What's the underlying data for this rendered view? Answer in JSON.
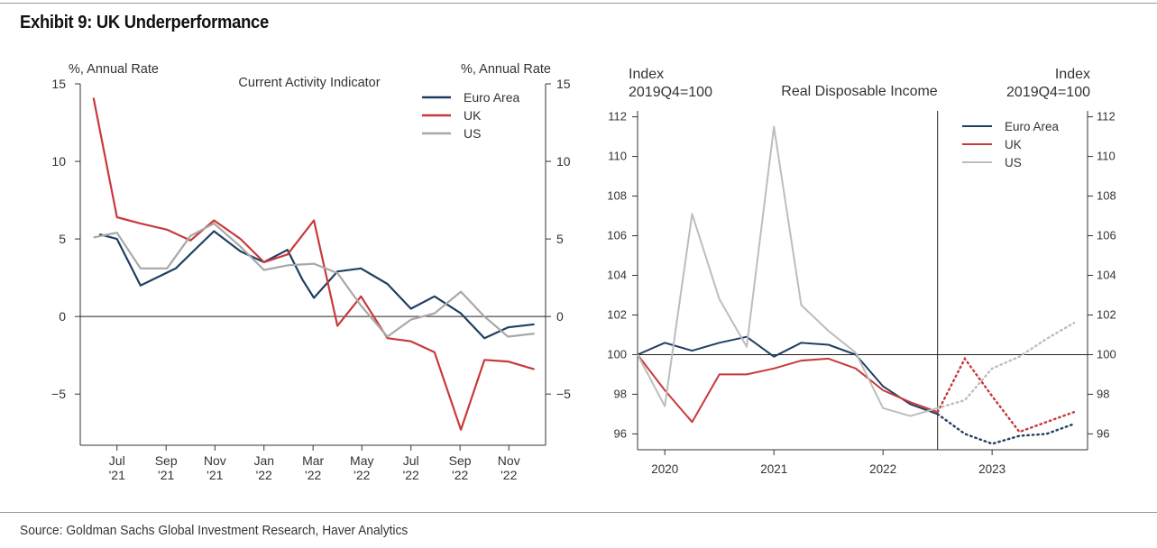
{
  "exhibit": {
    "title": "Exhibit 9: UK Underperformance",
    "source": "Source: Goldman Sachs Global Investment Research, Haver Analytics"
  },
  "colors": {
    "euro_area": "#1f3f62",
    "uk": "#c8393a",
    "us_left": "#a8a8a8",
    "us_right": "#bdbdbd",
    "axis": "#333333"
  },
  "chart_data": [
    {
      "id": "current-activity",
      "type": "line",
      "title": "Current Activity Indicator",
      "ylabel_left": "%, Annual Rate",
      "ylabel_right": "%, Annual Rate",
      "ylim": [
        -8.3,
        15
      ],
      "xlim": [
        2021.375,
        2022.958
      ],
      "yticks": [
        15,
        10,
        5,
        0,
        -5
      ],
      "ytick_labels": [
        "15",
        "10",
        "5",
        "0",
        "−5"
      ],
      "xticks": [
        {
          "x": 2021.5,
          "line1": "Jul",
          "line2": "'21"
        },
        {
          "x": 2021.667,
          "line1": "Sep",
          "line2": "'21"
        },
        {
          "x": 2021.833,
          "line1": "Nov",
          "line2": "'21"
        },
        {
          "x": 2022.0,
          "line1": "Jan",
          "line2": "'22"
        },
        {
          "x": 2022.167,
          "line1": "Mar",
          "line2": "'22"
        },
        {
          "x": 2022.333,
          "line1": "May",
          "line2": "'22"
        },
        {
          "x": 2022.5,
          "line1": "Jul",
          "line2": "'22"
        },
        {
          "x": 2022.667,
          "line1": "Sep",
          "line2": "'22"
        },
        {
          "x": 2022.833,
          "line1": "Nov",
          "line2": "'22"
        }
      ],
      "legend": [
        "Euro Area",
        "UK",
        "US"
      ],
      "series": [
        {
          "name": "Euro Area",
          "key": "euro_area",
          "x": [
            2021.44,
            2021.5,
            2021.58,
            2021.7,
            2021.77,
            2021.83,
            2021.92,
            2022.0,
            2022.08,
            2022.13,
            2022.17,
            2022.25,
            2022.33,
            2022.42,
            2022.5,
            2022.58,
            2022.67,
            2022.75,
            2022.83,
            2022.92
          ],
          "y": [
            5.3,
            5.0,
            2.0,
            3.1,
            4.4,
            5.5,
            4.2,
            3.5,
            4.3,
            2.4,
            1.2,
            2.9,
            3.1,
            2.1,
            0.5,
            1.3,
            0.2,
            -1.4,
            -0.7,
            -0.5
          ]
        },
        {
          "name": "UK",
          "key": "uk",
          "x": [
            2021.42,
            2021.5,
            2021.58,
            2021.67,
            2021.75,
            2021.83,
            2021.92,
            2022.0,
            2022.08,
            2022.17,
            2022.25,
            2022.33,
            2022.42,
            2022.5,
            2022.58,
            2022.67,
            2022.75,
            2022.83,
            2022.92
          ],
          "y": [
            14.1,
            6.4,
            6.0,
            5.6,
            4.9,
            6.2,
            5.0,
            3.5,
            4.0,
            6.2,
            -0.6,
            1.3,
            -1.4,
            -1.6,
            -2.3,
            -7.3,
            -2.8,
            -2.9,
            -3.4
          ]
        },
        {
          "name": "US",
          "key": "us_left",
          "x": [
            2021.42,
            2021.5,
            2021.58,
            2021.67,
            2021.75,
            2021.83,
            2021.92,
            2022.0,
            2022.08,
            2022.17,
            2022.25,
            2022.33,
            2022.42,
            2022.5,
            2022.58,
            2022.67,
            2022.75,
            2022.83,
            2022.92
          ],
          "y": [
            5.1,
            5.4,
            3.1,
            3.1,
            5.2,
            6.0,
            4.5,
            3.0,
            3.3,
            3.4,
            2.8,
            0.7,
            -1.3,
            -0.2,
            0.2,
            1.6,
            0.0,
            -1.3,
            -1.1
          ]
        }
      ]
    },
    {
      "id": "real-disposable-income",
      "type": "line",
      "title": "Real Disposable Income",
      "ylabel_left": [
        "Index",
        "2019Q4=100"
      ],
      "ylabel_right": [
        "Index",
        "2019Q4=100"
      ],
      "ylim": [
        95.2,
        112.3
      ],
      "xlim": [
        2019.75,
        2023.875
      ],
      "yticks": [
        112,
        110,
        108,
        106,
        104,
        102,
        100,
        98,
        96
      ],
      "xticks": [
        {
          "x": 2020.0,
          "label": "2020"
        },
        {
          "x": 2021.0,
          "label": "2021"
        },
        {
          "x": 2022.0,
          "label": "2022"
        },
        {
          "x": 2023.0,
          "label": "2023"
        }
      ],
      "forecast_start": 2022.5,
      "legend": [
        "Euro Area",
        "UK",
        "US"
      ],
      "series": [
        {
          "name": "Euro Area",
          "key": "euro_area",
          "x": [
            2019.75,
            2020.0,
            2020.25,
            2020.5,
            2020.75,
            2021.0,
            2021.25,
            2021.5,
            2021.75,
            2022.0,
            2022.25,
            2022.5,
            2022.75,
            2023.0,
            2023.25,
            2023.5,
            2023.75
          ],
          "y": [
            100.0,
            100.6,
            100.2,
            100.6,
            100.9,
            99.9,
            100.6,
            100.5,
            100.0,
            98.4,
            97.5,
            97.0,
            96.0,
            95.5,
            95.9,
            96.0,
            96.5
          ],
          "forecast_from": 11
        },
        {
          "name": "UK",
          "key": "uk",
          "x": [
            2019.75,
            2020.0,
            2020.25,
            2020.5,
            2020.75,
            2021.0,
            2021.25,
            2021.5,
            2021.75,
            2022.0,
            2022.25,
            2022.5,
            2022.75,
            2023.0,
            2023.25,
            2023.5,
            2023.75
          ],
          "y": [
            100.0,
            98.2,
            96.6,
            99.0,
            99.0,
            99.3,
            99.7,
            99.8,
            99.3,
            98.2,
            97.6,
            97.1,
            99.8,
            97.9,
            96.1,
            96.6,
            97.1
          ],
          "forecast_from": 11
        },
        {
          "name": "US",
          "key": "us_right",
          "x": [
            2019.75,
            2020.0,
            2020.25,
            2020.5,
            2020.75,
            2021.0,
            2021.25,
            2021.5,
            2021.75,
            2022.0,
            2022.25,
            2022.5,
            2022.75,
            2023.0,
            2023.25,
            2023.5,
            2023.75
          ],
          "y": [
            100.0,
            97.4,
            107.1,
            102.8,
            100.4,
            111.5,
            102.5,
            101.2,
            100.1,
            97.3,
            96.9,
            97.3,
            97.7,
            99.3,
            99.9,
            100.8,
            101.6
          ],
          "forecast_from": 11
        }
      ]
    }
  ]
}
